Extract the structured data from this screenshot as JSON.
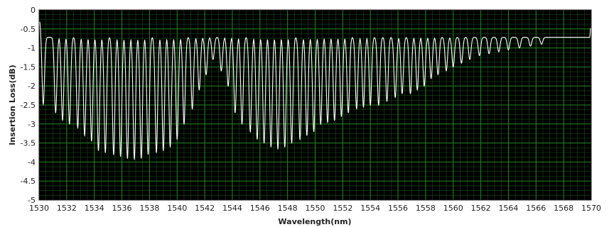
{
  "chart_data": {
    "type": "line",
    "title": "",
    "xlabel": "Wavelength(nm)",
    "ylabel": "Insertion Loss(dB)",
    "xlim": [
      1530,
      1570
    ],
    "ylim": [
      -5,
      0
    ],
    "x_ticks": [
      1530,
      1532,
      1534,
      1536,
      1538,
      1540,
      1542,
      1544,
      1546,
      1548,
      1550,
      1552,
      1554,
      1556,
      1558,
      1560,
      1562,
      1564,
      1566,
      1568,
      1570
    ],
    "y_ticks": [
      0,
      -0.5,
      -1,
      -1.5,
      -2,
      -2.5,
      -3,
      -3.5,
      -4,
      -4.5,
      -5
    ],
    "grid": true,
    "colors": {
      "plot_bg": "#000000",
      "grid": "#1f8a1f",
      "line": "#ffffff",
      "frame": "#202020"
    },
    "series": [
      {
        "baseline_db": -0.72,
        "edge_db": -0.15,
        "dips": [
          {
            "x": 1530.3,
            "y": -2.5
          },
          {
            "x": 1531.2,
            "y": -2.7
          },
          {
            "x": 1531.7,
            "y": -2.9
          },
          {
            "x": 1532.2,
            "y": -3.0
          },
          {
            "x": 1532.8,
            "y": -3.1
          },
          {
            "x": 1533.3,
            "y": -3.3
          },
          {
            "x": 1533.8,
            "y": -3.45
          },
          {
            "x": 1534.3,
            "y": -3.7
          },
          {
            "x": 1534.8,
            "y": -3.75
          },
          {
            "x": 1535.4,
            "y": -3.8
          },
          {
            "x": 1535.9,
            "y": -3.85
          },
          {
            "x": 1536.4,
            "y": -3.9
          },
          {
            "x": 1536.9,
            "y": -3.92
          },
          {
            "x": 1537.4,
            "y": -3.9
          },
          {
            "x": 1537.9,
            "y": -3.8
          },
          {
            "x": 1538.5,
            "y": -3.75
          },
          {
            "x": 1539.0,
            "y": -3.7
          },
          {
            "x": 1539.5,
            "y": -3.6
          },
          {
            "x": 1540.0,
            "y": -3.4
          },
          {
            "x": 1540.5,
            "y": -3.0
          },
          {
            "x": 1541.1,
            "y": -2.6
          },
          {
            "x": 1541.6,
            "y": -2.1
          },
          {
            "x": 1542.1,
            "y": -1.7
          },
          {
            "x": 1542.6,
            "y": -1.3
          },
          {
            "x": 1543.2,
            "y": -1.6
          },
          {
            "x": 1543.7,
            "y": -2.0
          },
          {
            "x": 1544.2,
            "y": -2.7
          },
          {
            "x": 1544.7,
            "y": -3.0
          },
          {
            "x": 1545.3,
            "y": -3.2
          },
          {
            "x": 1545.8,
            "y": -3.4
          },
          {
            "x": 1546.3,
            "y": -3.5
          },
          {
            "x": 1546.8,
            "y": -3.6
          },
          {
            "x": 1547.3,
            "y": -3.65
          },
          {
            "x": 1547.8,
            "y": -3.6
          },
          {
            "x": 1548.3,
            "y": -3.5
          },
          {
            "x": 1548.9,
            "y": -3.4
          },
          {
            "x": 1549.4,
            "y": -3.3
          },
          {
            "x": 1549.9,
            "y": -3.2
          },
          {
            "x": 1550.4,
            "y": -3.0
          },
          {
            "x": 1550.9,
            "y": -2.95
          },
          {
            "x": 1551.4,
            "y": -2.9
          },
          {
            "x": 1551.9,
            "y": -2.8
          },
          {
            "x": 1552.4,
            "y": -2.7
          },
          {
            "x": 1553.0,
            "y": -2.6
          },
          {
            "x": 1553.5,
            "y": -2.55
          },
          {
            "x": 1554.0,
            "y": -2.5
          },
          {
            "x": 1554.6,
            "y": -2.5
          },
          {
            "x": 1555.2,
            "y": -2.4
          },
          {
            "x": 1555.8,
            "y": -2.3
          },
          {
            "x": 1556.3,
            "y": -2.2
          },
          {
            "x": 1556.9,
            "y": -2.2
          },
          {
            "x": 1557.4,
            "y": -2.1
          },
          {
            "x": 1557.9,
            "y": -2.0
          },
          {
            "x": 1558.4,
            "y": -1.8
          },
          {
            "x": 1558.9,
            "y": -1.7
          },
          {
            "x": 1559.5,
            "y": -1.6
          },
          {
            "x": 1560.0,
            "y": -1.5
          },
          {
            "x": 1560.6,
            "y": -1.4
          },
          {
            "x": 1561.2,
            "y": -1.3
          },
          {
            "x": 1561.9,
            "y": -1.2
          },
          {
            "x": 1562.6,
            "y": -1.15
          },
          {
            "x": 1563.3,
            "y": -1.1
          },
          {
            "x": 1564.0,
            "y": -1.05
          },
          {
            "x": 1564.8,
            "y": -1.0
          },
          {
            "x": 1565.6,
            "y": -0.95
          },
          {
            "x": 1566.4,
            "y": -0.9
          }
        ]
      }
    ]
  }
}
